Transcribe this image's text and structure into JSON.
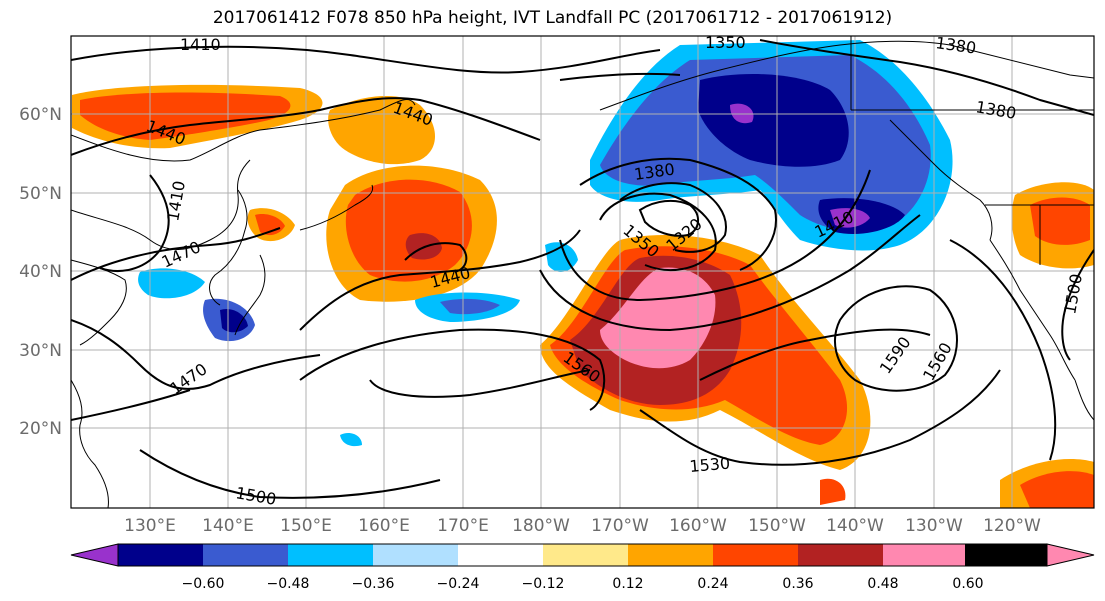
{
  "title": "2017061412 F078 850 hPa height, IVT Landfall PC (2017061712 - 2017061912)",
  "latitudes": [
    "60°N",
    "50°N",
    "40°N",
    "30°N",
    "20°N"
  ],
  "longitudes": [
    "130°E",
    "140°E",
    "150°E",
    "160°E",
    "170°E",
    "180°W",
    "170°W",
    "160°W",
    "150°W",
    "140°W",
    "130°W",
    "120°W"
  ],
  "contour_labels": [
    "1410",
    "1440",
    "1410",
    "1470",
    "1470",
    "1500",
    "1440",
    "1440",
    "1380",
    "1350",
    "1320",
    "1350",
    "1380",
    "1380",
    "1410",
    "1560",
    "1530",
    "1590",
    "1560",
    "1500"
  ],
  "colorbar": {
    "ticks": [
      "−0.60",
      "−0.48",
      "−0.36",
      "−0.24",
      "−0.12",
      "0.12",
      "0.24",
      "0.36",
      "0.48",
      "0.60"
    ],
    "colors": [
      "#9932cc",
      "#00008b",
      "#3a5bd0",
      "#00bfff",
      "#b0e0ff",
      "#ffffff",
      "#ffe98a",
      "#ffa500",
      "#ff4500",
      "#b22222",
      "#ff88b0"
    ]
  }
}
